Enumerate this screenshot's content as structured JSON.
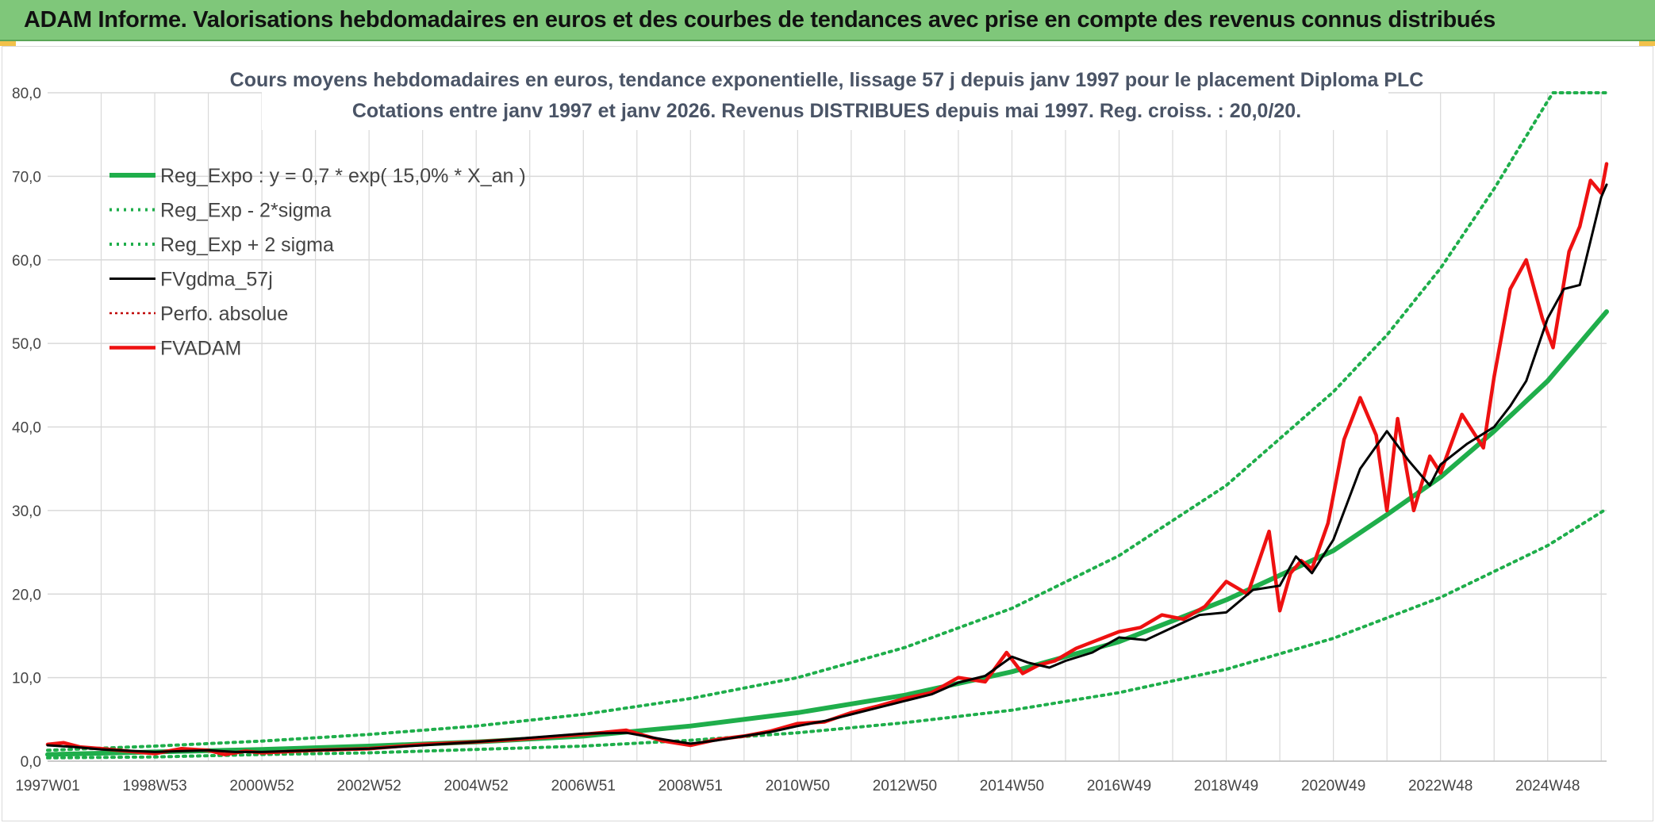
{
  "banner": {
    "title": "ADAM Informe. Valorisations hebdomadaires en euros et des courbes de tendances avec prise en compte des revenus connus distribués"
  },
  "chart_data": {
    "type": "line",
    "title_line1": "Cours moyens hebdomadaires en euros, tendance exponentielle, lissage 57 j depuis janv 1997 pour le placement Diploma PLC",
    "title_line2": "Cotations entre janv 1997 et janv 2026. Revenus DISTRIBUES depuis mai 1997. Reg. croiss. : 20,0/20.",
    "xlabel": "",
    "ylabel": "",
    "ylim": [
      0,
      80
    ],
    "xlim": [
      1997.0,
      2026.1
    ],
    "grid": true,
    "legend_position": "top-left",
    "y_ticks": [
      "0,0",
      "10,0",
      "20,0",
      "30,0",
      "40,0",
      "50,0",
      "60,0",
      "70,0",
      "80,0"
    ],
    "x_ticks": [
      {
        "label": "1997W01",
        "year": 1997.0
      },
      {
        "label": "1998W53",
        "year": 1999.0
      },
      {
        "label": "2000W52",
        "year": 2001.0
      },
      {
        "label": "2002W52",
        "year": 2003.0
      },
      {
        "label": "2004W52",
        "year": 2005.0
      },
      {
        "label": "2006W51",
        "year": 2007.0
      },
      {
        "label": "2008W51",
        "year": 2009.0
      },
      {
        "label": "2010W50",
        "year": 2011.0
      },
      {
        "label": "2012W50",
        "year": 2013.0
      },
      {
        "label": "2014W50",
        "year": 2015.0
      },
      {
        "label": "2016W49",
        "year": 2017.0
      },
      {
        "label": "2018W49",
        "year": 2019.0
      },
      {
        "label": "2020W49",
        "year": 2021.0
      },
      {
        "label": "2022W48",
        "year": 2023.0
      },
      {
        "label": "2024W48",
        "year": 2025.0
      }
    ],
    "colors": {
      "green": "#1fae4b",
      "black": "#000000",
      "red": "#ee1111",
      "dark_red": "#c00000",
      "grid": "#d9d9d9"
    },
    "series": [
      {
        "name": "Reg_Expo : y = 0,7 * exp( 15,0% *  X_an )",
        "style": "solid-green",
        "x": [
          1997.0,
          1999.0,
          2001.0,
          2003.0,
          2005.0,
          2007.0,
          2009.0,
          2011.0,
          2013.0,
          2015.0,
          2017.0,
          2019.0,
          2021.0,
          2022.0,
          2023.0,
          2024.0,
          2025.0,
          2026.1
        ],
        "y": [
          0.8,
          1.1,
          1.4,
          1.8,
          2.3,
          3.0,
          4.2,
          5.8,
          7.9,
          10.7,
          14.3,
          19.3,
          25.2,
          29.5,
          34.0,
          39.5,
          45.5,
          53.8
        ]
      },
      {
        "name": "Reg_Exp - 2*sigma",
        "style": "dotted-green",
        "x": [
          1997.0,
          1999.0,
          2001.0,
          2003.0,
          2005.0,
          2007.0,
          2009.0,
          2011.0,
          2013.0,
          2015.0,
          2017.0,
          2019.0,
          2021.0,
          2023.0,
          2025.0,
          2026.1
        ],
        "y": [
          0.4,
          0.5,
          0.8,
          1.0,
          1.4,
          1.8,
          2.5,
          3.4,
          4.6,
          6.1,
          8.2,
          11.0,
          14.7,
          19.6,
          25.8,
          30.2
        ]
      },
      {
        "name": "Reg_Exp + 2 sigma",
        "style": "dotted-green",
        "x": [
          1997.0,
          1999.0,
          2001.0,
          2003.0,
          2005.0,
          2007.0,
          2009.0,
          2011.0,
          2013.0,
          2015.0,
          2017.0,
          2019.0,
          2021.0,
          2022.0,
          2023.0,
          2024.0,
          2025.0,
          2025.1,
          2026.1
        ],
        "y": [
          1.3,
          1.8,
          2.4,
          3.2,
          4.2,
          5.6,
          7.5,
          10.0,
          13.6,
          18.3,
          24.6,
          33.0,
          44.2,
          51.0,
          59.0,
          68.5,
          79.0,
          80.0,
          80.0
        ]
      },
      {
        "name": "FVgdma_57j",
        "style": "solid-black",
        "x": [
          1997.0,
          1997.5,
          1998.0,
          1999.0,
          2000.0,
          2000.5,
          2001.0,
          2002.0,
          2003.0,
          2004.0,
          2005.0,
          2006.0,
          2007.0,
          2007.8,
          2008.5,
          2009.0,
          2009.5,
          2010.0,
          2010.5,
          2011.0,
          2011.5,
          2012.0,
          2012.5,
          2013.0,
          2013.5,
          2014.0,
          2014.5,
          2015.0,
          2015.3,
          2015.7,
          2016.0,
          2016.5,
          2017.0,
          2017.5,
          2018.0,
          2018.5,
          2019.0,
          2019.5,
          2020.0,
          2020.3,
          2020.6,
          2021.0,
          2021.5,
          2022.0,
          2022.4,
          2022.8,
          2023.0,
          2023.5,
          2024.0,
          2024.3,
          2024.6,
          2025.0,
          2025.3,
          2025.6,
          2026.0,
          2026.1
        ],
        "y": [
          1.9,
          1.7,
          1.4,
          1.1,
          1.3,
          1.1,
          1.1,
          1.3,
          1.5,
          1.9,
          2.3,
          2.8,
          3.3,
          3.4,
          2.6,
          2.1,
          2.5,
          3.0,
          3.5,
          4.2,
          4.8,
          5.6,
          6.4,
          7.2,
          8.0,
          9.4,
          10.2,
          12.5,
          11.8,
          11.2,
          12.0,
          13.0,
          14.8,
          14.5,
          16.0,
          17.5,
          17.8,
          20.5,
          21.0,
          24.5,
          22.5,
          26.5,
          35.0,
          39.5,
          36.0,
          33.0,
          35.5,
          38.0,
          40.0,
          42.5,
          45.5,
          53.0,
          56.5,
          57.0,
          67.5,
          69.0
        ]
      },
      {
        "name": "Perfo. absolue",
        "style": "dotted-darkred",
        "x": [],
        "y": []
      },
      {
        "name": "FVADAM",
        "style": "solid-red",
        "x": [
          1997.0,
          1997.3,
          1997.6,
          1998.0,
          1998.5,
          1999.0,
          1999.5,
          2000.0,
          2000.3,
          2000.7,
          2001.0,
          2002.0,
          2003.0,
          2004.0,
          2005.0,
          2006.0,
          2007.0,
          2007.8,
          2008.5,
          2009.0,
          2009.5,
          2010.0,
          2010.5,
          2011.0,
          2011.5,
          2012.0,
          2012.5,
          2013.0,
          2013.5,
          2014.0,
          2014.5,
          2014.9,
          2015.2,
          2015.5,
          2015.8,
          2016.2,
          2016.6,
          2017.0,
          2017.4,
          2017.8,
          2018.2,
          2018.6,
          2019.0,
          2019.4,
          2019.8,
          2020.0,
          2020.2,
          2020.4,
          2020.6,
          2020.9,
          2021.2,
          2021.5,
          2021.8,
          2022.0,
          2022.2,
          2022.5,
          2022.8,
          2023.0,
          2023.4,
          2023.8,
          2024.0,
          2024.3,
          2024.6,
          2024.9,
          2025.1,
          2025.4,
          2025.6,
          2025.8,
          2026.0,
          2026.1
        ],
        "y": [
          2.0,
          2.2,
          1.7,
          1.5,
          1.2,
          0.9,
          1.5,
          1.3,
          0.8,
          1.2,
          1.0,
          1.3,
          1.5,
          2.0,
          2.3,
          2.7,
          3.2,
          3.7,
          2.4,
          1.9,
          2.6,
          3.0,
          3.6,
          4.5,
          4.7,
          5.8,
          6.6,
          7.5,
          8.2,
          10.0,
          9.5,
          13.0,
          10.5,
          11.5,
          12.0,
          13.5,
          14.5,
          15.5,
          16.0,
          17.5,
          17.0,
          18.5,
          21.5,
          20.0,
          27.5,
          18.0,
          22.5,
          24.0,
          23.0,
          28.5,
          38.5,
          43.5,
          39.0,
          30.0,
          41.0,
          30.0,
          36.5,
          34.5,
          41.5,
          37.5,
          46.0,
          56.5,
          60.0,
          53.0,
          49.5,
          61.0,
          64.0,
          69.5,
          68.0,
          71.5
        ]
      }
    ]
  }
}
